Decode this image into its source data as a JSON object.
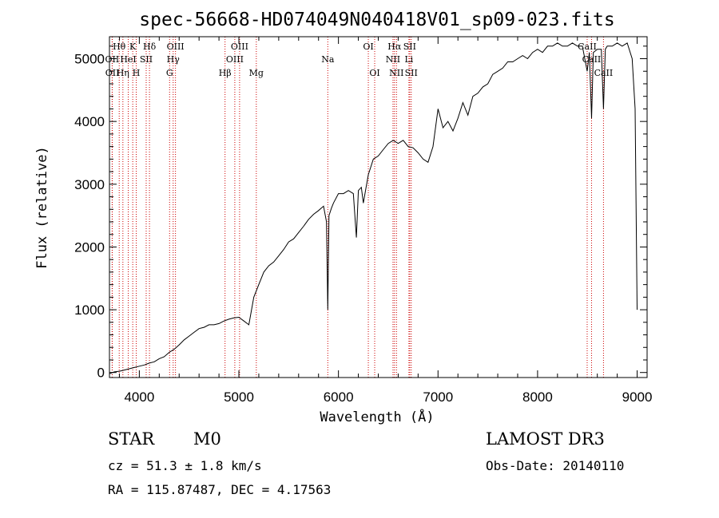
{
  "chart_data": {
    "type": "line",
    "title": "spec-56668-HD074049N040418V01_sp09-023.fits",
    "xlabel": "Wavelength (Å)",
    "ylabel": "Flux (relative)",
    "xlim": [
      3700,
      9100
    ],
    "ylim": [
      -80,
      5350
    ],
    "x_ticks": [
      4000,
      5000,
      6000,
      7000,
      8000,
      9000
    ],
    "y_ticks": [
      0,
      1000,
      2000,
      3000,
      4000,
      5000
    ],
    "series": [
      {
        "name": "spectrum",
        "x": [
          3700,
          3750,
          3800,
          3850,
          3900,
          3950,
          4000,
          4050,
          4100,
          4150,
          4200,
          4250,
          4300,
          4350,
          4400,
          4450,
          4500,
          4550,
          4600,
          4650,
          4700,
          4750,
          4800,
          4850,
          4900,
          4950,
          5000,
          5050,
          5100,
          5150,
          5200,
          5250,
          5300,
          5350,
          5400,
          5450,
          5500,
          5550,
          5600,
          5650,
          5700,
          5750,
          5800,
          5850,
          5880,
          5893,
          5905,
          5930,
          5950,
          6000,
          6050,
          6100,
          6150,
          6180,
          6200,
          6230,
          6250,
          6300,
          6350,
          6400,
          6450,
          6500,
          6550,
          6600,
          6650,
          6700,
          6750,
          6800,
          6850,
          6900,
          6950,
          7000,
          7050,
          7100,
          7150,
          7200,
          7250,
          7300,
          7350,
          7400,
          7450,
          7500,
          7550,
          7600,
          7650,
          7700,
          7750,
          7800,
          7850,
          7900,
          7950,
          8000,
          8050,
          8100,
          8150,
          8200,
          8250,
          8300,
          8350,
          8400,
          8450,
          8498,
          8520,
          8542,
          8560,
          8600,
          8640,
          8662,
          8680,
          8700,
          8750,
          8800,
          8850,
          8900,
          8950,
          8980,
          9000
        ],
        "y": [
          -20,
          10,
          20,
          40,
          60,
          80,
          100,
          120,
          150,
          170,
          220,
          250,
          320,
          370,
          440,
          520,
          580,
          640,
          700,
          720,
          760,
          760,
          780,
          820,
          850,
          870,
          880,
          820,
          760,
          1200,
          1400,
          1600,
          1700,
          1760,
          1860,
          1960,
          2080,
          2130,
          2230,
          2330,
          2440,
          2520,
          2580,
          2650,
          2400,
          1000,
          2500,
          2620,
          2700,
          2850,
          2850,
          2900,
          2850,
          2150,
          2900,
          2950,
          2700,
          3150,
          3400,
          3450,
          3550,
          3650,
          3700,
          3650,
          3700,
          3600,
          3580,
          3500,
          3400,
          3350,
          3600,
          4200,
          3900,
          4000,
          3850,
          4050,
          4300,
          4100,
          4400,
          4450,
          4550,
          4600,
          4750,
          4800,
          4850,
          4950,
          4950,
          5000,
          5050,
          5000,
          5100,
          5150,
          5100,
          5200,
          5200,
          5250,
          5200,
          5200,
          5250,
          5200,
          5200,
          4800,
          5100,
          4050,
          5100,
          5150,
          5150,
          4200,
          5150,
          5200,
          5200,
          5250,
          5200,
          5250,
          5000,
          4200,
          1000
        ]
      }
    ],
    "line_markers": [
      {
        "label": "Hθ",
        "x": 3798,
        "row": 1
      },
      {
        "label": "OII",
        "x": 3727,
        "row": 2
      },
      {
        "label": "OII",
        "x": 3729,
        "row": 3
      },
      {
        "label": "Hη",
        "x": 3835,
        "row": 3
      },
      {
        "label": "HeI",
        "x": 3889,
        "row": 2
      },
      {
        "label": "K",
        "x": 3934,
        "row": 1
      },
      {
        "label": "H",
        "x": 3969,
        "row": 3
      },
      {
        "label": "SII",
        "x": 4069,
        "row": 2
      },
      {
        "label": "Hδ",
        "x": 4102,
        "row": 1
      },
      {
        "label": "OIII",
        "x": 4363,
        "row": 1
      },
      {
        "label": "Hγ",
        "x": 4340,
        "row": 2
      },
      {
        "label": "G",
        "x": 4304,
        "row": 3
      },
      {
        "label": "Hβ",
        "x": 4861,
        "row": 3
      },
      {
        "label": "OIII",
        "x": 5007,
        "row": 1
      },
      {
        "label": "OIII",
        "x": 4959,
        "row": 2
      },
      {
        "label": "Mg",
        "x": 5175,
        "row": 3
      },
      {
        "label": "Na",
        "x": 5893,
        "row": 2
      },
      {
        "label": "OI",
        "x": 6300,
        "row": 1
      },
      {
        "label": "OI",
        "x": 6364,
        "row": 3
      },
      {
        "label": "Hα",
        "x": 6563,
        "row": 1
      },
      {
        "label": "SII",
        "x": 6716,
        "row": 1
      },
      {
        "label": "NII",
        "x": 6548,
        "row": 2
      },
      {
        "label": "NII",
        "x": 6583,
        "row": 3
      },
      {
        "label": "Li",
        "x": 6708,
        "row": 2
      },
      {
        "label": "SII",
        "x": 6731,
        "row": 3
      },
      {
        "label": "CaII",
        "x": 8498,
        "row": 1
      },
      {
        "label": "CaII",
        "x": 8542,
        "row": 2
      },
      {
        "label": "CaII",
        "x": 8662,
        "row": 3
      }
    ]
  },
  "info": {
    "class": "STAR",
    "subclass": "M0",
    "survey": "LAMOST DR3",
    "cz": "cz = 51.3 ± 1.8 km/s",
    "obs_date": "Obs-Date: 20140110",
    "coords": "RA = 115.87487, DEC =   4.17563"
  },
  "colors": {
    "spectrum": "#000000",
    "marker": "#cc0000"
  }
}
